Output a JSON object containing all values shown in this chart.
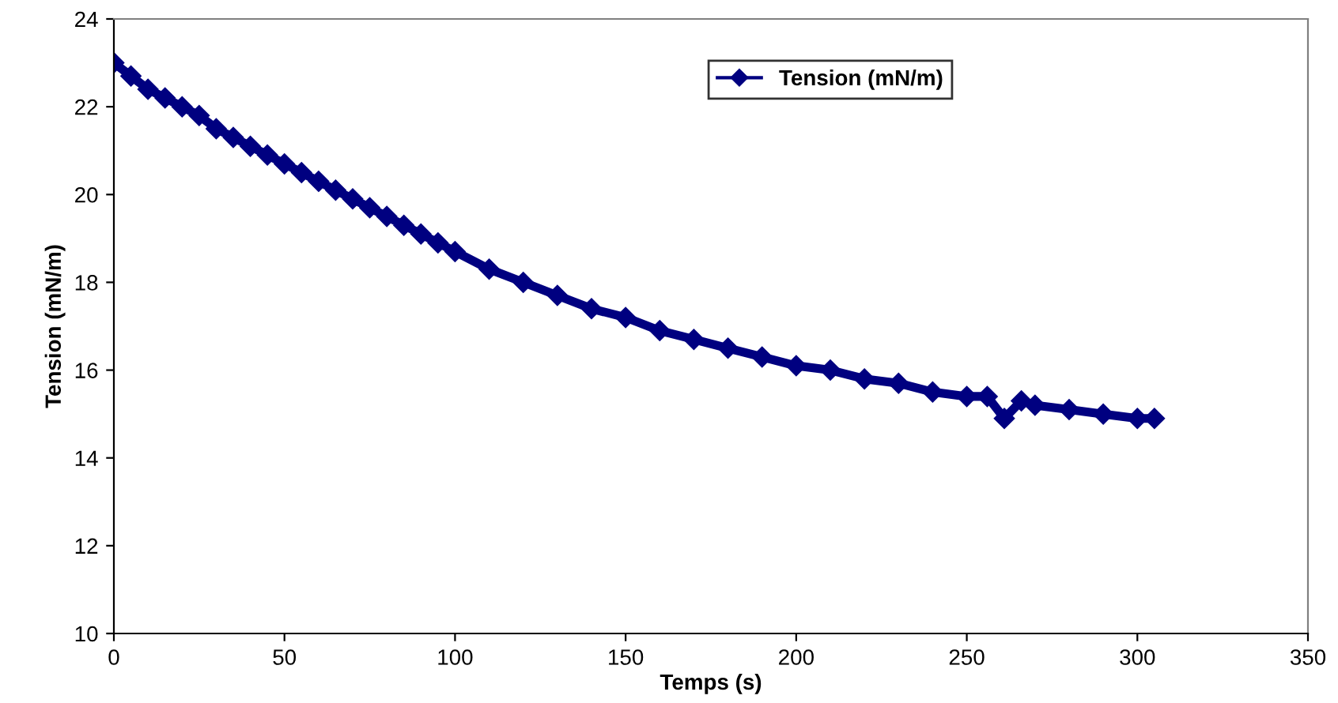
{
  "chart_data": {
    "type": "line",
    "xlabel": "Temps (s)",
    "ylabel": "Tension (mN/m)",
    "xlim": [
      0,
      350
    ],
    "xticks": [
      0,
      50,
      100,
      150,
      200,
      250,
      300,
      350
    ],
    "ylim": [
      10,
      24
    ],
    "yticks": [
      10,
      12,
      14,
      16,
      18,
      20,
      22,
      24
    ],
    "grid": false,
    "legend": "top",
    "marker": "diamond",
    "line_style": "solid",
    "series": [
      {
        "name": "Tension (mN/m)",
        "color": "#000080",
        "x": [
          0,
          5,
          10,
          15,
          20,
          25,
          30,
          35,
          40,
          45,
          50,
          55,
          60,
          65,
          70,
          75,
          80,
          85,
          90,
          95,
          100,
          110,
          120,
          130,
          140,
          150,
          160,
          170,
          180,
          190,
          200,
          210,
          220,
          230,
          240,
          250,
          256,
          261,
          266,
          270,
          280,
          290,
          300,
          305
        ],
        "values": [
          23.0,
          22.7,
          22.4,
          22.2,
          22.0,
          21.8,
          21.5,
          21.3,
          21.1,
          20.9,
          20.7,
          20.5,
          20.3,
          20.1,
          19.9,
          19.7,
          19.5,
          19.3,
          19.1,
          18.9,
          18.7,
          18.3,
          18.0,
          17.7,
          17.4,
          17.2,
          16.9,
          16.7,
          16.5,
          16.3,
          16.1,
          16.0,
          15.8,
          15.7,
          15.5,
          15.4,
          15.4,
          14.9,
          15.3,
          15.2,
          15.1,
          15.0,
          14.9,
          14.9
        ]
      }
    ]
  }
}
